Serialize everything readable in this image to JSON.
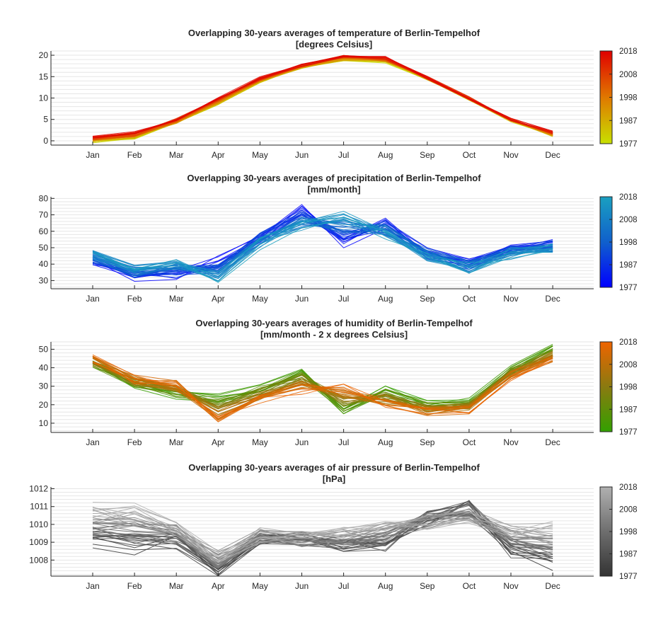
{
  "chart_data": [
    {
      "type": "line",
      "title": "Overlapping 30-years averages of temperature of Berlin-Tempelhof",
      "subtitle": "[degrees Celsius]",
      "categories": [
        "Jan",
        "Feb",
        "Mar",
        "Apr",
        "May",
        "Jun",
        "Jul",
        "Aug",
        "Sep",
        "Oct",
        "Nov",
        "Dec"
      ],
      "ylim": [
        -1,
        21
      ],
      "yticks": [
        0,
        5,
        10,
        15,
        20
      ],
      "grid": "horizontal-minor",
      "legend": "colorbar-right",
      "colorbar": {
        "ticks": [
          "1977",
          "1987",
          "1998",
          "2008",
          "2018"
        ],
        "color_old": "#c8e000",
        "color_mid": "#e07800",
        "color_new": "#e00000"
      },
      "series_old": [
        -0.2,
        0.6,
        4.1,
        8.6,
        13.8,
        17.2,
        18.9,
        18.4,
        14.5,
        9.8,
        4.7,
        1.2
      ],
      "series_new": [
        0.9,
        1.9,
        5.1,
        9.9,
        14.7,
        17.6,
        19.9,
        19.4,
        14.8,
        10.0,
        5.1,
        2.0
      ],
      "spread": 0.35,
      "series_count": 42
    },
    {
      "type": "line",
      "title": "Overlapping 30-years averages of precipitation of Berlin-Tempelhof",
      "subtitle": "[mm/month]",
      "categories": [
        "Jan",
        "Feb",
        "Mar",
        "Apr",
        "May",
        "Jun",
        "Jul",
        "Aug",
        "Sep",
        "Oct",
        "Nov",
        "Dec"
      ],
      "ylim": [
        25,
        81
      ],
      "yticks": [
        30,
        40,
        50,
        60,
        70,
        80
      ],
      "grid": "horizontal-minor",
      "legend": "colorbar-right",
      "colorbar": {
        "ticks": [
          "1977",
          "1987",
          "1998",
          "2008",
          "2018"
        ],
        "color_old": "#0000ff",
        "color_mid": "#1060cc",
        "color_new": "#1aa0c0"
      },
      "series_old": [
        41,
        33,
        33,
        42,
        57,
        74,
        53,
        65,
        47,
        40,
        49,
        52
      ],
      "series_new": [
        47,
        37,
        42,
        31,
        52,
        62,
        70,
        58,
        45,
        37,
        46,
        49
      ],
      "spread": 3.5,
      "series_count": 42
    },
    {
      "type": "line",
      "title": "Overlapping 30-years averages of humidity of Berlin-Tempelhof",
      "subtitle": "[mm/month - 2 x degrees Celsius]",
      "categories": [
        "Jan",
        "Feb",
        "Mar",
        "Apr",
        "May",
        "Jun",
        "Jul",
        "Aug",
        "Sep",
        "Oct",
        "Nov",
        "Dec"
      ],
      "ylim": [
        5,
        54
      ],
      "yticks": [
        10,
        20,
        30,
        40,
        50
      ],
      "grid": "horizontal-minor",
      "legend": "colorbar-right",
      "colorbar": {
        "ticks": [
          "1977",
          "1987",
          "1998",
          "2008",
          "2018"
        ],
        "color_old": "#33a000",
        "color_mid": "#8a7a10",
        "color_new": "#ee6400"
      },
      "series_old": [
        42,
        31,
        25,
        24,
        29,
        39,
        16,
        28,
        20,
        22,
        39,
        51
      ],
      "series_new": [
        45,
        34,
        32,
        11,
        23,
        28,
        29,
        20,
        16,
        17,
        35,
        44
      ],
      "spread": 2.5,
      "series_count": 42
    },
    {
      "type": "line",
      "title": "Overlapping 30-years averages of air pressure of Berlin-Tempelhof",
      "subtitle": "[hPa]",
      "categories": [
        "Jan",
        "Feb",
        "Mar",
        "Apr",
        "May",
        "Jun",
        "Jul",
        "Aug",
        "Sep",
        "Oct",
        "Nov",
        "Dec"
      ],
      "ylim": [
        1007.1,
        1012.1
      ],
      "yticks": [
        1008,
        1009,
        1010,
        1011,
        1012
      ],
      "grid": "horizontal-minor",
      "legend": "colorbar-right",
      "colorbar": {
        "ticks": [
          "1977",
          "1987",
          "1998",
          "2008",
          "2018"
        ],
        "color_old": "#333333",
        "color_mid": "#6e6e6e",
        "color_new": "#b0b0b0"
      },
      "series_old": [
        1009.0,
        1008.6,
        1008.9,
        1007.5,
        1009.1,
        1009.2,
        1008.5,
        1008.7,
        1010.4,
        1011.0,
        1008.3,
        1007.8
      ],
      "series_new": [
        1010.9,
        1010.9,
        1009.9,
        1008.3,
        1009.4,
        1009.2,
        1009.6,
        1009.8,
        1010.1,
        1010.5,
        1009.8,
        1010.0
      ],
      "spread": 0.45,
      "series_count": 42
    }
  ]
}
